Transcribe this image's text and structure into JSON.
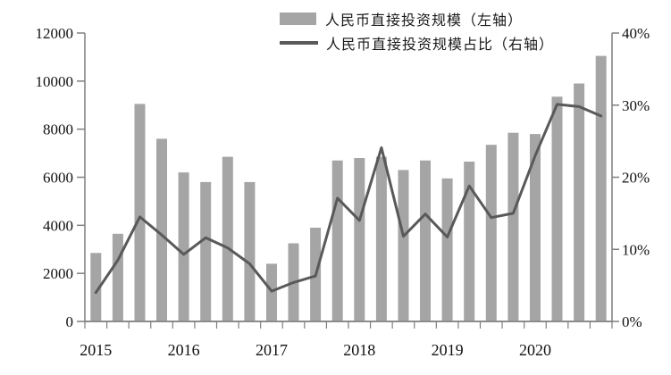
{
  "chart_data": {
    "type": "bar",
    "combo": true,
    "title": "",
    "xlabel": "",
    "ylabel_left": "",
    "ylabel_right": "",
    "grid": "off",
    "legend_position": "top-center",
    "categories": [
      "2015Q1",
      "2015Q2",
      "2015Q3",
      "2015Q4",
      "2016Q1",
      "2016Q2",
      "2016Q3",
      "2016Q4",
      "2017Q1",
      "2017Q2",
      "2017Q3",
      "2017Q4",
      "2018Q1",
      "2018Q2",
      "2018Q3",
      "2018Q4",
      "2019Q1",
      "2019Q2",
      "2019Q3",
      "2019Q4",
      "2020Q1",
      "2020Q2",
      "2020Q3",
      "2020Q4"
    ],
    "x_tick_labels": [
      "2015",
      "2016",
      "2017",
      "2018",
      "2019",
      "2020"
    ],
    "series": [
      {
        "name": "人民币直接投资规模（左轴）",
        "type": "bar",
        "axis": "left",
        "color": "#a5a5a5",
        "values": [
          2850,
          3650,
          9050,
          7600,
          6200,
          5800,
          6850,
          5800,
          2400,
          3250,
          3900,
          6700,
          6800,
          6850,
          6300,
          6700,
          5950,
          6650,
          7350,
          7850,
          7800,
          9350,
          9900,
          11050
        ]
      },
      {
        "name": "人民币直接投资规模占比（右轴）",
        "type": "line",
        "axis": "right",
        "color": "#595959",
        "values_percent": [
          4.0,
          8.5,
          14.5,
          12.0,
          9.3,
          11.6,
          10.2,
          8.0,
          4.2,
          5.4,
          6.3,
          17.1,
          14.0,
          24.1,
          11.8,
          14.9,
          11.7,
          18.8,
          14.4,
          15.0,
          23.0,
          30.1,
          29.8,
          28.5
        ]
      }
    ],
    "left_axis": {
      "min": 0,
      "max": 12000,
      "step": 2000,
      "tick_labels": [
        "0",
        "2000",
        "4000",
        "6000",
        "8000",
        "10000",
        "12000"
      ]
    },
    "right_axis": {
      "min": 0,
      "max": 40,
      "step": 10,
      "unit": "%",
      "tick_labels": [
        "0%",
        "10%",
        "20%",
        "30%",
        "40%"
      ]
    }
  },
  "legend": {
    "bar_label": "人民币直接投资规模（左轴）",
    "line_label": "人民币直接投资规模占比（右轴）"
  },
  "colors": {
    "bar_fill": "#a5a5a5",
    "line_stroke": "#595959",
    "axis_line": "#7f7f7f",
    "bottom_axis_line": "#8c8c8c",
    "text": "#111111",
    "background": "#ffffff"
  }
}
